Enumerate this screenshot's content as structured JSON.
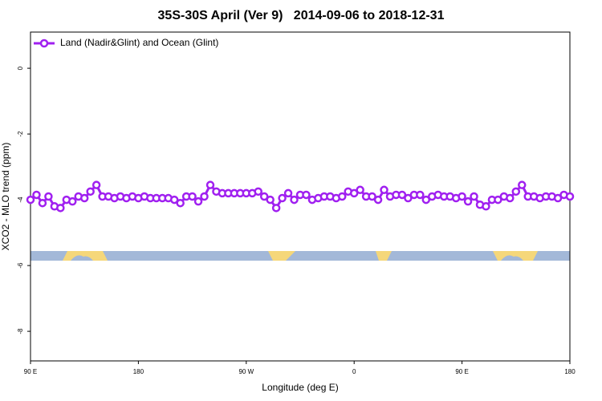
{
  "chart_data": {
    "type": "line",
    "title": "35S-30S April (Ver 9)   2014-09-06 to 2018-12-31",
    "x_label": "Longitude (deg E)",
    "y_label": "XCO2 - MLO trend (ppm)",
    "xlim": [
      90,
      540
    ],
    "ylim": [
      -8.9,
      1.1
    ],
    "xticks": [
      {
        "value": 90,
        "label": "90 E"
      },
      {
        "value": 180,
        "label": "180"
      },
      {
        "value": 270,
        "label": "90 W"
      },
      {
        "value": 360,
        "label": "0"
      },
      {
        "value": 450,
        "label": "90 E"
      },
      {
        "value": 540,
        "label": "180"
      }
    ],
    "yticks": [
      0,
      -2,
      -4,
      -6,
      -8
    ],
    "legend": "top-left",
    "x": [
      90,
      95,
      100,
      105,
      110,
      115,
      120,
      125,
      130,
      135,
      140,
      145,
      150,
      155,
      160,
      165,
      170,
      175,
      180,
      185,
      190,
      195,
      200,
      205,
      210,
      215,
      220,
      225,
      230,
      235,
      240,
      245,
      250,
      255,
      260,
      265,
      270,
      275,
      280,
      285,
      290,
      295,
      300,
      305,
      310,
      315,
      320,
      325,
      330,
      335,
      340,
      345,
      350,
      355,
      360,
      365,
      370,
      375,
      380,
      385,
      390,
      395,
      400,
      405,
      410,
      415,
      420,
      425,
      430,
      435,
      440,
      445,
      450,
      455,
      460,
      465,
      470,
      475,
      480,
      485,
      490,
      495,
      500,
      505,
      510,
      515,
      520,
      525,
      530,
      535,
      540
    ],
    "series": [
      {
        "name": "Land (Nadir&Glint) and Ocean (Glint)",
        "color": "#a020f0",
        "values": [
          -4.0,
          -3.85,
          -4.1,
          -3.9,
          -4.2,
          -4.25,
          -4.0,
          -4.05,
          -3.9,
          -3.95,
          -3.75,
          -3.55,
          -3.9,
          -3.9,
          -3.95,
          -3.9,
          -3.95,
          -3.9,
          -3.95,
          -3.9,
          -3.95,
          -3.95,
          -3.95,
          -3.95,
          -4.0,
          -4.1,
          -3.9,
          -3.9,
          -4.05,
          -3.9,
          -3.55,
          -3.75,
          -3.8,
          -3.8,
          -3.8,
          -3.8,
          -3.8,
          -3.8,
          -3.75,
          -3.9,
          -4.0,
          -4.25,
          -3.95,
          -3.8,
          -4.0,
          -3.85,
          -3.85,
          -4.0,
          -3.95,
          -3.9,
          -3.9,
          -3.95,
          -3.9,
          -3.75,
          -3.8,
          -3.7,
          -3.9,
          -3.9,
          -4.0,
          -3.7,
          -3.9,
          -3.85,
          -3.85,
          -3.95,
          -3.85,
          -3.85,
          -4.0,
          -3.9,
          -3.85,
          -3.9,
          -3.9,
          -3.95,
          -3.9,
          -4.05,
          -3.9,
          -4.15,
          -4.2,
          -4.0,
          -4.0,
          -3.9,
          -3.95,
          -3.75,
          -3.55,
          -3.9,
          -3.9,
          -3.95,
          -3.9,
          -3.9,
          -3.95,
          -3.85,
          -3.9
        ]
      }
    ]
  }
}
